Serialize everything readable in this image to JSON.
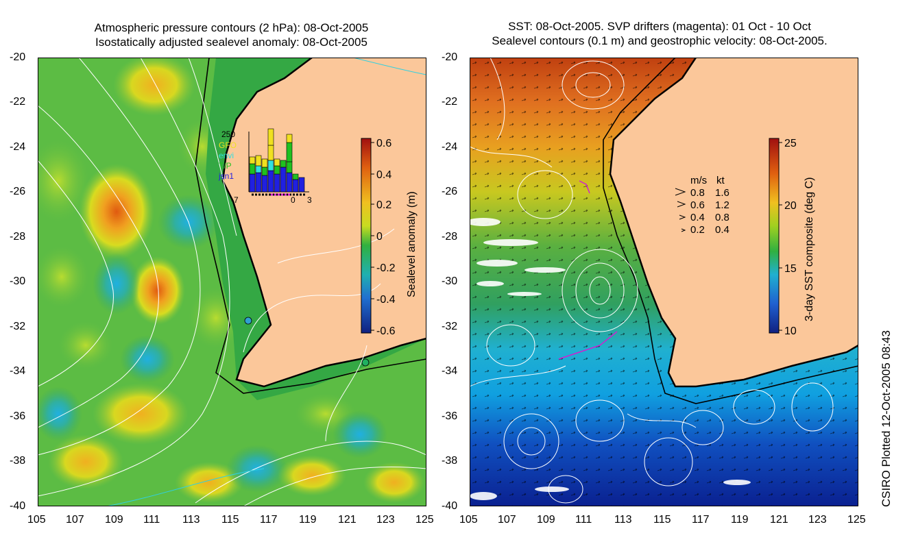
{
  "left_panel": {
    "title_line1": "Atmospheric pressure contours (2 hPa): 08-Oct-2005",
    "title_line2": "Isostatically adjusted sealevel anomaly: 08-Oct-2005",
    "colorbar": {
      "label": "Sealevel anomaly (m)",
      "ticks": [
        "0.6",
        "0.4",
        "0.2",
        "0",
        "-0.2",
        "-0.4",
        "-0.6"
      ],
      "range": [
        -0.6,
        0.6
      ]
    },
    "inset": {
      "y_tick": "250",
      "legend": [
        "GFO",
        "envi",
        "T/P",
        "jsn1"
      ],
      "legend_colors": [
        "#f0e020",
        "#30e0e0",
        "#20c020",
        "#2020e0"
      ],
      "x_ticks": [
        "-7",
        "0",
        "3"
      ]
    }
  },
  "right_panel": {
    "title_line1": "SST: 08-Oct-2005. SVP drifters (magenta): 01 Oct - 10 Oct",
    "title_line2": "Sealevel contours (0.1 m) and geostrophic velocity: 08-Oct-2005.",
    "colorbar": {
      "label": "3-day SST composite (deg C)",
      "ticks": [
        "25",
        "20",
        "15",
        "10"
      ],
      "range": [
        10,
        25
      ]
    },
    "velocity_key": {
      "header_ms": "m/s",
      "header_kt": "kt",
      "rows": [
        {
          "ms": "0.8",
          "kt": "1.6"
        },
        {
          "ms": "0.6",
          "kt": "1.2"
        },
        {
          "ms": "0.4",
          "kt": "0.8"
        },
        {
          "ms": "0.2",
          "kt": "0.4"
        }
      ]
    }
  },
  "axes": {
    "latitudes": [
      "-20",
      "-22",
      "-24",
      "-26",
      "-28",
      "-30",
      "-32",
      "-34",
      "-36",
      "-38",
      "-40"
    ],
    "longitudes": [
      "105",
      "107",
      "109",
      "111",
      "113",
      "115",
      "117",
      "119",
      "121",
      "123",
      "125"
    ],
    "lat_range": [
      -40,
      -20
    ],
    "lon_range": [
      105,
      125
    ]
  },
  "credit": "CSIRO Plotted 12-Oct-2005 08:43",
  "colors": {
    "land": "#fbc79a",
    "ocean_green": "#3cb04a",
    "contour": "#ffffff",
    "coast": "#000000",
    "drifter": "#d020d0"
  }
}
